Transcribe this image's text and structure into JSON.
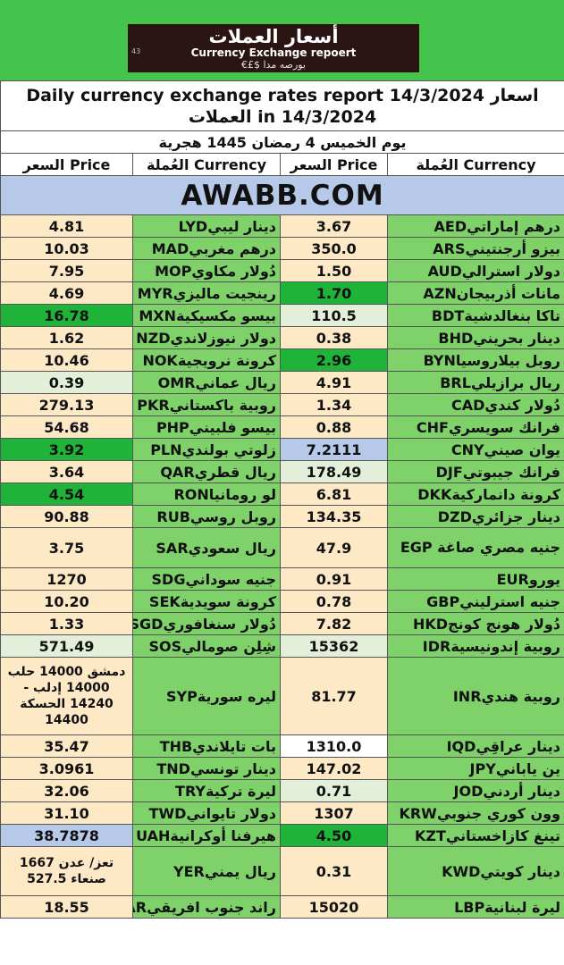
{
  "logo": {
    "arabic": "أسعار العملات",
    "english": "Currency Exchange repoert",
    "symbols": "€£$ ﺑﻮﺭﺻﻪ ﻣﺪﺍ",
    "num": "43"
  },
  "header": {
    "title": "Daily currency exchange rates report 14/3/2024 اسعار العملات in 14/3/2024",
    "hijri_date": "يوم الخميس 4 رمضان 1445 هجرية",
    "col_price": "السعر Price",
    "col_currency": "العُملة Currency"
  },
  "brand": "AWABB.COM",
  "left_rows": [
    {
      "name": "درهم إماراتي",
      "code": "AED",
      "value": "3.67",
      "color": "cream"
    },
    {
      "name": "بيزو أرجنتيني",
      "code": "ARS",
      "value": "350.0",
      "color": "cream"
    },
    {
      "name": "دولار استرالي",
      "code": "AUD",
      "value": "1.50",
      "color": "cream"
    },
    {
      "name": "مانات أذربيجان",
      "code": "AZN",
      "value": "1.70",
      "color": "dark-green"
    },
    {
      "name": "تاكا بنغالدشية",
      "code": "BDT",
      "value": "110.5",
      "color": "light-green"
    },
    {
      "name": "دينار بحريني",
      "code": "BHD",
      "value": "0.38",
      "color": "cream"
    },
    {
      "name": "روبل بيلاروسيا",
      "code": "BYN",
      "value": "2.96",
      "color": "dark-green"
    },
    {
      "name": "ريال برازيلي",
      "code": "BRL",
      "value": "4.91",
      "color": "cream"
    },
    {
      "name": "دُولار كندي",
      "code": "CAD",
      "value": "1.34",
      "color": "cream"
    },
    {
      "name": "فرانك سويسري",
      "code": "CHF",
      "value": "0.88",
      "color": "cream"
    },
    {
      "name": "يوان صيني",
      "code": "CNY",
      "value": "7.2111",
      "color": "blue"
    },
    {
      "name": "فرانك جيبوتي",
      "code": "DJF",
      "value": "178.49",
      "color": "light-green"
    },
    {
      "name": "كرونة دانماركية",
      "code": "DKK",
      "value": "6.81",
      "color": "cream"
    },
    {
      "name": "دينار جزائري",
      "code": "DZD",
      "value": "134.35",
      "color": "cream"
    },
    {
      "name": "جنيه مصري صاغة EGP",
      "code": "",
      "value": "47.9",
      "color": "cream"
    },
    {
      "name": "يورو",
      "code": "EUR",
      "value": "0.91",
      "color": "cream"
    },
    {
      "name": "جنيه استرليني",
      "code": "GBP",
      "value": "0.78",
      "color": "cream"
    },
    {
      "name": "دُولار هونج كونج",
      "code": "HKD",
      "value": "7.82",
      "color": "cream"
    },
    {
      "name": "روبية إندونيسية",
      "code": "IDR",
      "value": "15362",
      "color": "light-green"
    },
    {
      "name": "روبية هندي",
      "code": "INR",
      "value": "81.77",
      "color": "cream"
    },
    {
      "name": "دينار عراقِي",
      "code": "IQD",
      "value": "1310.0",
      "color": "white"
    },
    {
      "name": "ين ياباني",
      "code": "JPY",
      "value": "147.02",
      "color": "cream"
    },
    {
      "name": "دينار أردني",
      "code": "JOD",
      "value": "0.71",
      "color": "light-green"
    },
    {
      "name": "وون كوري جنوبي",
      "code": "KRW",
      "value": "1307",
      "color": "cream"
    },
    {
      "name": "تينغ كازاخستاني",
      "code": "KZT",
      "value": "4.50",
      "color": "dark-green"
    },
    {
      "name": "دينار كويتي",
      "code": "KWD",
      "value": "0.31",
      "color": "cream"
    },
    {
      "name": "ليرة لبنانية",
      "code": "LBP",
      "value": "15020",
      "color": "cream"
    }
  ],
  "right_rows": [
    {
      "name": "دينار ليبي",
      "code": "LYD",
      "value": "4.81",
      "color": "cream"
    },
    {
      "name": "درهم مغربي",
      "code": "MAD",
      "value": "10.03",
      "color": "cream"
    },
    {
      "name": "دُولار مكاوي",
      "code": "MOP",
      "value": "7.95",
      "color": "cream"
    },
    {
      "name": "رينجيت ماليزي",
      "code": "MYR",
      "value": "4.69",
      "color": "cream"
    },
    {
      "name": "بيسو مكسيكية",
      "code": "MXN",
      "value": "16.78",
      "color": "dark-green"
    },
    {
      "name": "دولار نيوزلاندي",
      "code": "NZD",
      "value": "1.62",
      "color": "cream"
    },
    {
      "name": "كرونة نرويجية",
      "code": "NOK",
      "value": "10.46",
      "color": "cream"
    },
    {
      "name": "ريال عماني",
      "code": "OMR",
      "value": "0.39",
      "color": "light-green"
    },
    {
      "name": "روبية باكستاني",
      "code": "PKR",
      "value": "279.13",
      "color": "cream"
    },
    {
      "name": "بيسو فلبيني",
      "code": "PHP",
      "value": "54.68",
      "color": "cream"
    },
    {
      "name": "زلوتي بولندي",
      "code": "PLN",
      "value": "3.92",
      "color": "dark-green"
    },
    {
      "name": "ريال قطري",
      "code": "QAR",
      "value": "3.64",
      "color": "cream"
    },
    {
      "name": "لو رومانيا",
      "code": "RON",
      "value": "4.54",
      "color": "dark-green"
    },
    {
      "name": "روبل روسي",
      "code": "RUB",
      "value": "90.88",
      "color": "cream"
    },
    {
      "name": "ريال سعودي",
      "code": "SAR",
      "value": "3.75",
      "color": "cream"
    },
    {
      "name": "جنيه سوداني",
      "code": "SDG",
      "value": "1270",
      "color": "cream"
    },
    {
      "name": "كرونة سويدية",
      "code": "SEK",
      "value": "10.20",
      "color": "cream"
    },
    {
      "name": "دُولار سنغافوري",
      "code": "SGD",
      "value": "1.33",
      "color": "cream"
    },
    {
      "name": "شِلِن صومالي",
      "code": "SOS",
      "value": "571.49",
      "color": "light-green"
    },
    {
      "name": "ليره سورية",
      "code": "SYP",
      "value": "دمشق 14000 حلب 14000 إدلب - 14240 الحسكة 14400",
      "color": "cream"
    },
    {
      "name": "بات تايلاندي",
      "code": "THB",
      "value": "35.47",
      "color": "cream"
    },
    {
      "name": "دينار تونسي",
      "code": "TND",
      "value": "3.0961",
      "color": "cream"
    },
    {
      "name": "ليرة تركية",
      "code": "TRY",
      "value": "32.06",
      "color": "cream"
    },
    {
      "name": "دولار تايواني",
      "code": "TWD",
      "value": "31.10",
      "color": "cream"
    },
    {
      "name": "هيرفنا أوكرانية",
      "code": "UAH",
      "value": "38.7878",
      "color": "blue"
    },
    {
      "name": "ريال يمني",
      "code": "YER",
      "value": "تعز/ عدن 1667 صنعاء 527.5",
      "color": "cream"
    },
    {
      "name": "راند جنوب افريقي",
      "code": "ZAR",
      "value": "18.55",
      "color": "cream"
    }
  ]
}
